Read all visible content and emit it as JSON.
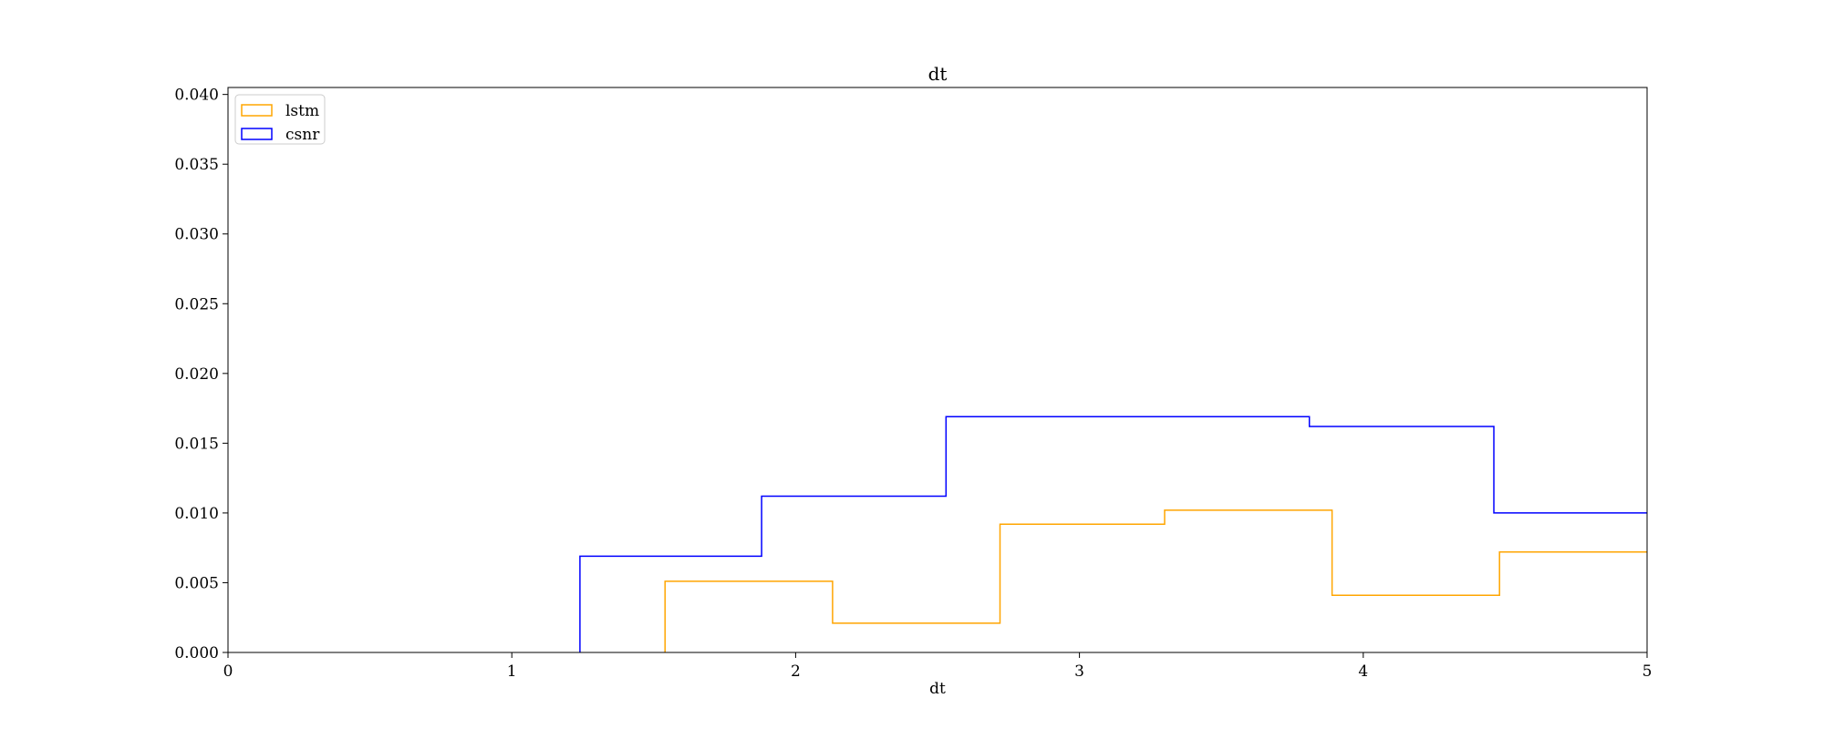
{
  "chart_data": {
    "type": "histogram",
    "title": "dt",
    "xlabel": "dt",
    "ylabel": "",
    "xlim": [
      0,
      5
    ],
    "ylim": [
      0,
      0.0405
    ],
    "x_ticks": [
      0,
      1,
      2,
      3,
      4,
      5
    ],
    "x_tick_labels": [
      "0",
      "1",
      "2",
      "3",
      "4",
      "5"
    ],
    "y_ticks": [
      0,
      0.005,
      0.01,
      0.015,
      0.02,
      0.025,
      0.03,
      0.035,
      0.04
    ],
    "y_tick_labels": [
      "0.000",
      "0.005",
      "0.010",
      "0.015",
      "0.020",
      "0.025",
      "0.030",
      "0.035",
      "0.040"
    ],
    "grid": false,
    "legend": {
      "position": "top-left"
    },
    "series": [
      {
        "name": "lstm",
        "color": "#ffa500",
        "style": "step",
        "bin_edges": [
          1.54,
          2.13,
          2.72,
          3.3,
          3.89,
          4.48,
          5.0
        ],
        "values": [
          0.0051,
          0.0021,
          0.0092,
          0.0102,
          0.0041,
          0.0072
        ]
      },
      {
        "name": "csnr",
        "color": "#0000ff",
        "style": "step",
        "bin_edges": [
          1.24,
          1.88,
          2.53,
          3.17,
          3.81,
          4.46,
          5.0
        ],
        "values": [
          0.0069,
          0.0112,
          0.0169,
          0.0169,
          0.0162,
          0.01
        ]
      }
    ]
  }
}
